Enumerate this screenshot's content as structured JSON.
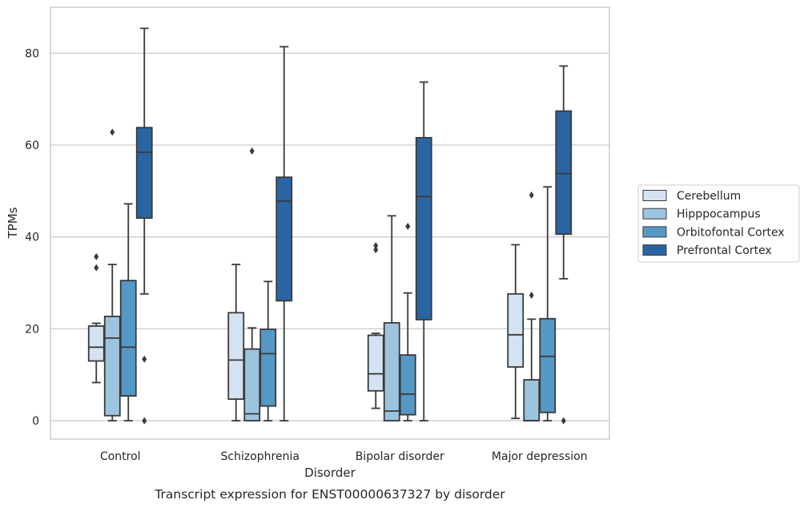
{
  "chart_data": {
    "type": "box",
    "xlabel": "Disorder",
    "ylabel": "TPMs",
    "caption": "Transcript expression for ENST00000637327 by disorder",
    "ylim": [
      -4,
      90
    ],
    "yticks": [
      0,
      20,
      40,
      60,
      80
    ],
    "grid": "horizontal",
    "legend_position": "right",
    "categories": [
      "Control",
      "Schizophrenia",
      "Bipolar disorder",
      "Major depression"
    ],
    "series": [
      {
        "name": "Cerebellum",
        "color": "#d4e3f1",
        "boxes": [
          {
            "whislo": 8.3,
            "q1": 13.0,
            "median": 16.0,
            "q3": 20.6,
            "whishi": 21.2,
            "fliers": [
              33.3,
              35.7
            ]
          },
          {
            "whislo": 0.0,
            "q1": 4.7,
            "median": 13.2,
            "q3": 23.5,
            "whishi": 34.0,
            "fliers": []
          },
          {
            "whislo": 2.7,
            "q1": 6.5,
            "median": 10.2,
            "q3": 18.6,
            "whishi": 19.0,
            "fliers": [
              37.2,
              38.1
            ]
          },
          {
            "whislo": 0.5,
            "q1": 11.7,
            "median": 18.7,
            "q3": 27.6,
            "whishi": 38.3,
            "fliers": []
          }
        ]
      },
      {
        "name": "Hipppocampus",
        "color": "#9dc4de",
        "boxes": [
          {
            "whislo": 0.0,
            "q1": 1.1,
            "median": 18.0,
            "q3": 22.7,
            "whishi": 34.0,
            "fliers": [
              62.8
            ]
          },
          {
            "whislo": 0.0,
            "q1": 0.0,
            "median": 1.5,
            "q3": 15.6,
            "whishi": 20.2,
            "fliers": [
              58.7
            ]
          },
          {
            "whislo": 0.0,
            "q1": 0.0,
            "median": 2.1,
            "q3": 21.3,
            "whishi": 44.6,
            "fliers": []
          },
          {
            "whislo": 0.0,
            "q1": 0.0,
            "median": 0.0,
            "q3": 8.9,
            "whishi": 22.1,
            "fliers": [
              27.3,
              49.1
            ]
          }
        ]
      },
      {
        "name": "Orbitofontal Cortex",
        "color": "#5598c6",
        "boxes": [
          {
            "whislo": 0.0,
            "q1": 5.4,
            "median": 16.0,
            "q3": 30.5,
            "whishi": 47.2,
            "fliers": []
          },
          {
            "whislo": 0.0,
            "q1": 3.2,
            "median": 14.6,
            "q3": 19.9,
            "whishi": 30.3,
            "fliers": []
          },
          {
            "whislo": 0.0,
            "q1": 1.3,
            "median": 5.8,
            "q3": 14.3,
            "whishi": 27.8,
            "fliers": [
              42.3
            ]
          },
          {
            "whislo": 0.0,
            "q1": 1.8,
            "median": 14.0,
            "q3": 22.2,
            "whishi": 50.9,
            "fliers": []
          }
        ]
      },
      {
        "name": "Prefrontal Cortex",
        "color": "#2a65a3",
        "boxes": [
          {
            "whislo": 27.6,
            "q1": 44.1,
            "median": 58.4,
            "q3": 63.8,
            "whishi": 85.4,
            "fliers": [
              0.0,
              13.4
            ]
          },
          {
            "whislo": 0.0,
            "q1": 26.1,
            "median": 47.8,
            "q3": 53.0,
            "whishi": 81.4,
            "fliers": []
          },
          {
            "whislo": 0.0,
            "q1": 22.0,
            "median": 48.8,
            "q3": 61.6,
            "whishi": 73.7,
            "fliers": []
          },
          {
            "whislo": 30.9,
            "q1": 40.6,
            "median": 53.8,
            "q3": 67.4,
            "whishi": 77.2,
            "fliers": [
              0.0
            ]
          }
        ]
      }
    ]
  }
}
